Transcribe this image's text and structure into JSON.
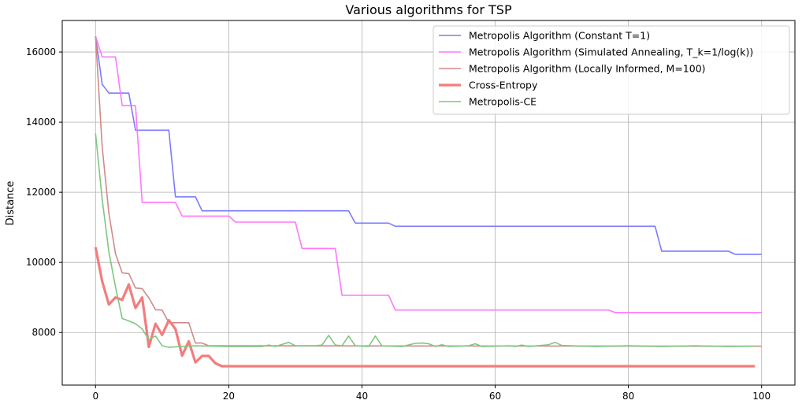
{
  "chart_data": {
    "type": "line",
    "title": "Various algorithms for TSP",
    "xlabel": "",
    "ylabel": "Distance",
    "xlim": [
      -5,
      105
    ],
    "ylim": [
      6500,
      16900
    ],
    "xticks": [
      0,
      20,
      40,
      60,
      80,
      100
    ],
    "yticks": [
      8000,
      10000,
      12000,
      14000,
      16000
    ],
    "grid": true,
    "legend_position": "top-right",
    "series": [
      {
        "name": "Metropolis Algorithm (Constant T=1)",
        "color": "#7b7bff",
        "width": 1.6,
        "points": [
          [
            0,
            16450
          ],
          [
            1,
            15080
          ],
          [
            2,
            14830
          ],
          [
            5,
            14830
          ],
          [
            6,
            13770
          ],
          [
            11,
            13770
          ],
          [
            12,
            11870
          ],
          [
            15,
            11870
          ],
          [
            16,
            11470
          ],
          [
            38,
            11470
          ],
          [
            39,
            11120
          ],
          [
            44,
            11120
          ],
          [
            45,
            11030
          ],
          [
            84,
            11030
          ],
          [
            85,
            10320
          ],
          [
            95,
            10320
          ],
          [
            96,
            10230
          ],
          [
            100,
            10230
          ]
        ]
      },
      {
        "name": "Metropolis Algorithm (Simulated Annealing, T_k=1/log(k))",
        "color": "#ff77ff",
        "width": 1.6,
        "points": [
          [
            0,
            16450
          ],
          [
            1,
            15860
          ],
          [
            3,
            15860
          ],
          [
            4,
            14470
          ],
          [
            6,
            14470
          ],
          [
            7,
            11710
          ],
          [
            12,
            11710
          ],
          [
            13,
            11320
          ],
          [
            20,
            11320
          ],
          [
            21,
            11150
          ],
          [
            30,
            11150
          ],
          [
            31,
            10400
          ],
          [
            36,
            10400
          ],
          [
            37,
            9060
          ],
          [
            44,
            9060
          ],
          [
            45,
            8640
          ],
          [
            77,
            8640
          ],
          [
            78,
            8570
          ],
          [
            100,
            8570
          ]
        ]
      },
      {
        "name": "Metropolis Algorithm (Locally Informed, M=100)",
        "color": "#d08a8a",
        "width": 1.6,
        "points": [
          [
            0,
            16450
          ],
          [
            1,
            13300
          ],
          [
            2,
            11400
          ],
          [
            3,
            10250
          ],
          [
            4,
            9700
          ],
          [
            5,
            9680
          ],
          [
            6,
            9270
          ],
          [
            7,
            9250
          ],
          [
            8,
            8990
          ],
          [
            9,
            8650
          ],
          [
            10,
            8640
          ],
          [
            11,
            8280
          ],
          [
            14,
            8280
          ],
          [
            15,
            7700
          ],
          [
            16,
            7700
          ],
          [
            17,
            7620
          ],
          [
            100,
            7610
          ]
        ]
      },
      {
        "name": "Cross-Entropy",
        "color": "#f47c7c",
        "width": 3.2,
        "points": [
          [
            0,
            10430
          ],
          [
            1,
            9460
          ],
          [
            2,
            8800
          ],
          [
            3,
            9000
          ],
          [
            4,
            8930
          ],
          [
            5,
            9370
          ],
          [
            6,
            8700
          ],
          [
            7,
            9000
          ],
          [
            8,
            7590
          ],
          [
            9,
            8250
          ],
          [
            10,
            7930
          ],
          [
            11,
            8350
          ],
          [
            12,
            8100
          ],
          [
            13,
            7340
          ],
          [
            14,
            7750
          ],
          [
            15,
            7150
          ],
          [
            16,
            7330
          ],
          [
            17,
            7330
          ],
          [
            18,
            7120
          ],
          [
            19,
            7040
          ],
          [
            99,
            7040
          ]
        ]
      },
      {
        "name": "Metropolis-CE",
        "color": "#7fc67f",
        "width": 1.6,
        "points": [
          [
            0,
            13680
          ],
          [
            1,
            11800
          ],
          [
            2,
            10300
          ],
          [
            3,
            9300
          ],
          [
            4,
            8400
          ],
          [
            5,
            8330
          ],
          [
            6,
            8250
          ],
          [
            7,
            8100
          ],
          [
            8,
            7800
          ],
          [
            9,
            7900
          ],
          [
            10,
            7620
          ],
          [
            11,
            7580
          ],
          [
            15,
            7620
          ],
          [
            20,
            7600
          ],
          [
            25,
            7600
          ],
          [
            26,
            7640
          ],
          [
            27,
            7600
          ],
          [
            29,
            7720
          ],
          [
            30,
            7620
          ],
          [
            33,
            7620
          ],
          [
            34,
            7640
          ],
          [
            35,
            7920
          ],
          [
            36,
            7640
          ],
          [
            37,
            7620
          ],
          [
            38,
            7900
          ],
          [
            39,
            7620
          ],
          [
            41,
            7600
          ],
          [
            42,
            7900
          ],
          [
            43,
            7620
          ],
          [
            46,
            7600
          ],
          [
            48,
            7690
          ],
          [
            49,
            7700
          ],
          [
            50,
            7680
          ],
          [
            51,
            7600
          ],
          [
            52,
            7650
          ],
          [
            53,
            7600
          ],
          [
            56,
            7620
          ],
          [
            57,
            7680
          ],
          [
            58,
            7600
          ],
          [
            62,
            7620
          ],
          [
            63,
            7600
          ],
          [
            64,
            7640
          ],
          [
            65,
            7600
          ],
          [
            68,
            7650
          ],
          [
            69,
            7720
          ],
          [
            70,
            7630
          ],
          [
            75,
            7600
          ],
          [
            80,
            7620
          ],
          [
            85,
            7600
          ],
          [
            90,
            7620
          ],
          [
            95,
            7600
          ],
          [
            99,
            7610
          ]
        ]
      }
    ]
  }
}
